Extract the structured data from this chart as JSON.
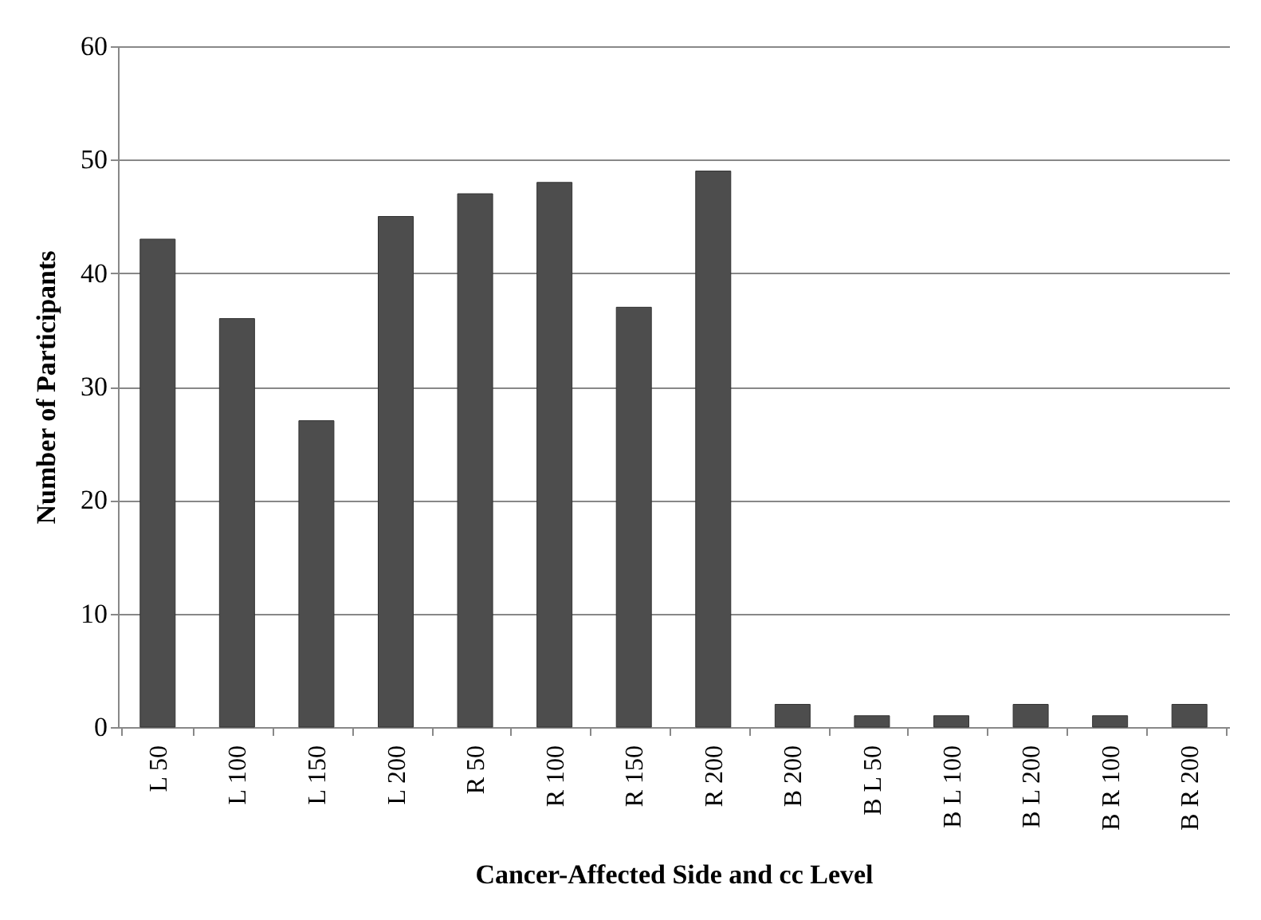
{
  "chart_data": {
    "type": "bar",
    "xlabel": "Cancer-Affected Side and cc Level",
    "ylabel": "Number of Participants",
    "categories": [
      "L 50",
      "L 100",
      "L 150",
      "L 200",
      "R 50",
      "R 100",
      "R 150",
      "R 200",
      "B 200",
      "B L 50",
      "B L 100",
      "B L 200",
      "B R 100",
      "B R 200"
    ],
    "values": [
      43,
      36,
      27,
      45,
      47,
      48,
      37,
      49,
      2,
      1,
      1,
      2,
      1,
      2
    ],
    "color": "#4d4d4d",
    "ylim": [
      0,
      60
    ],
    "yticks": [
      0,
      10,
      20,
      30,
      40,
      50,
      60
    ],
    "grid": "y"
  }
}
